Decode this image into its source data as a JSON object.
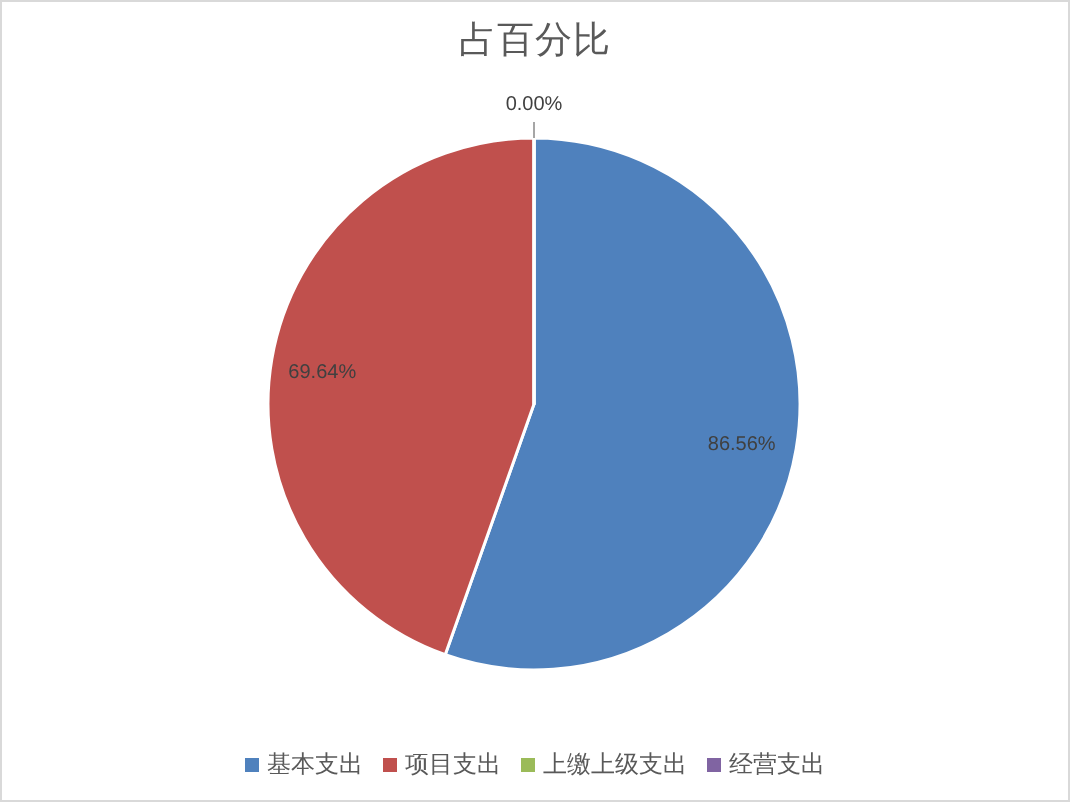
{
  "chart_data": {
    "type": "pie",
    "title": "占百分比",
    "categories": [
      "基本支出",
      "项目支出",
      "上缴上级支出",
      "经营支出"
    ],
    "values": [
      86.56,
      69.64,
      0.0,
      0
    ],
    "value_labels": [
      "86.56%",
      "69.64%",
      "0.00%",
      null
    ],
    "colors": [
      "#4f81bd",
      "#c0504d",
      "#9bbb59",
      "#8064a2"
    ],
    "legend": "bottom"
  }
}
